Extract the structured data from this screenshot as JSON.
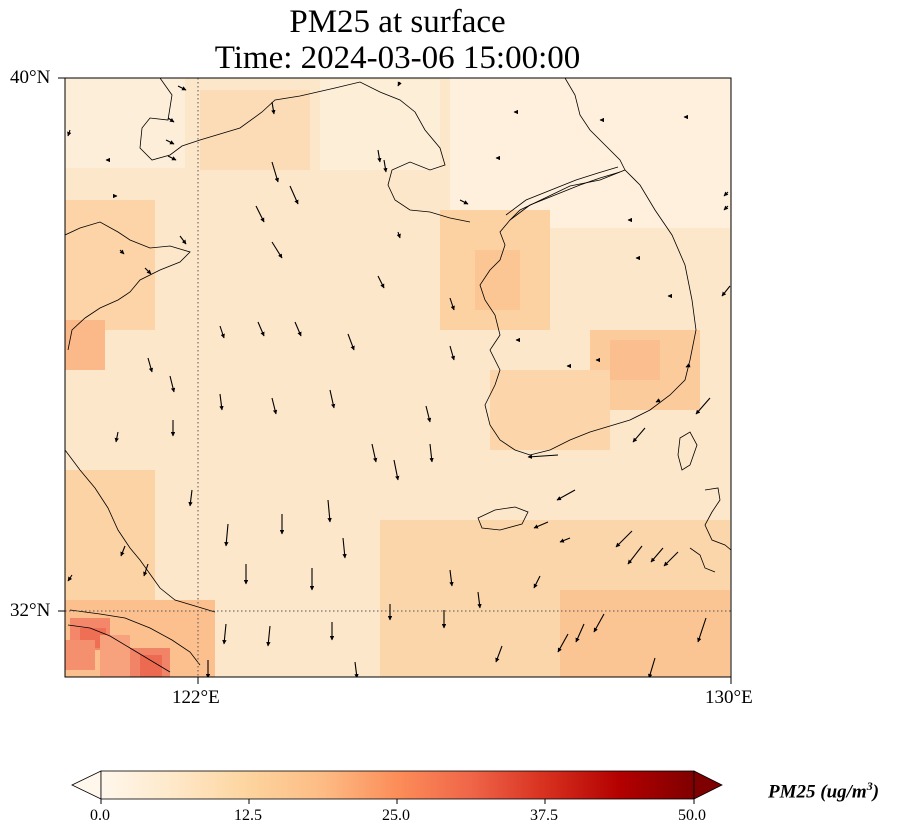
{
  "title_line1": "PM25 at surface",
  "title_line2": "Time: 2024-03-06 15:00:00",
  "lat_labels": [
    "40°N",
    "32°N"
  ],
  "lon_labels": [
    "122°E",
    "130°E"
  ],
  "colorbar": {
    "label": "PM25 (ug/m",
    "label_sup": "3",
    "label_end": ")",
    "ticks": [
      "0.0",
      "12.5",
      "25.0",
      "37.5",
      "50.0"
    ],
    "min": 0,
    "max": 50,
    "colormap": "OrRd",
    "colors": [
      "#fff7ec",
      "#fee8c8",
      "#fdd49e",
      "#fdbb84",
      "#fc8d59",
      "#ef6548",
      "#d7301f",
      "#b30000",
      "#7f0000"
    ]
  },
  "map_extent": {
    "lon_min": 120,
    "lon_max": 130,
    "lat_min": 31,
    "lat_max": 40
  },
  "gridlines": {
    "lon": 122,
    "lat": 32,
    "style": "dotted"
  },
  "wind": {
    "field_description": "Northerly/north-northwesterly winds over the Yellow Sea; stronger southwestward flow near southern Korea and Kyushu",
    "color": "#000000"
  },
  "pm25_field": {
    "background_level": 7,
    "hotspots": [
      {
        "name": "Shanghai coast",
        "level": 35
      },
      {
        "name": "Korea west coast",
        "level": 15
      },
      {
        "name": "Korea southeast",
        "level": 14
      },
      {
        "name": "Shandong coast",
        "level": 13
      },
      {
        "name": "Yellow Sea south",
        "level": 13
      }
    ]
  }
}
